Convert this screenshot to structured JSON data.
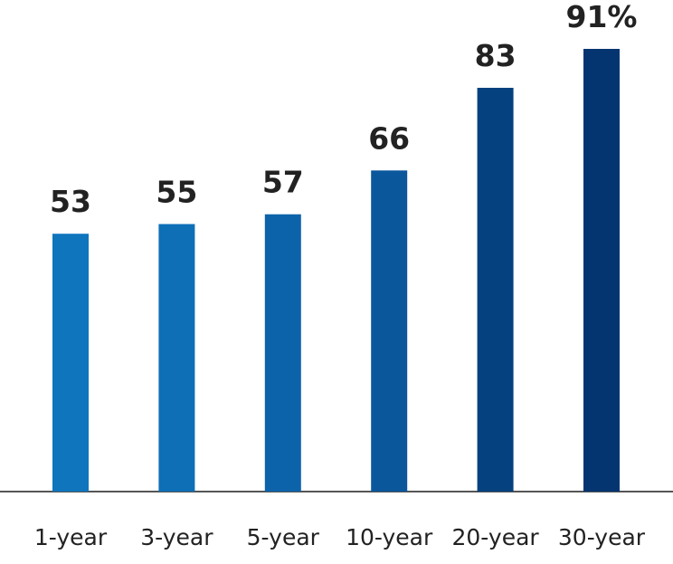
{
  "chart_data": {
    "type": "bar",
    "title": "",
    "xlabel": "",
    "ylabel": "",
    "categories": [
      "1-year",
      "3-year",
      "5-year",
      "10-year",
      "20-year",
      "30-year"
    ],
    "values": [
      53,
      55,
      57,
      66,
      83,
      91
    ],
    "value_labels": [
      "53",
      "55",
      "57",
      "66",
      "83",
      "91%"
    ],
    "ylim": [
      0,
      100
    ],
    "grid": false,
    "legend": "none",
    "colors": [
      "#0f75bd",
      "#0e6fb7",
      "#0c63aa",
      "#0a579c",
      "#05417f",
      "#053570"
    ]
  }
}
